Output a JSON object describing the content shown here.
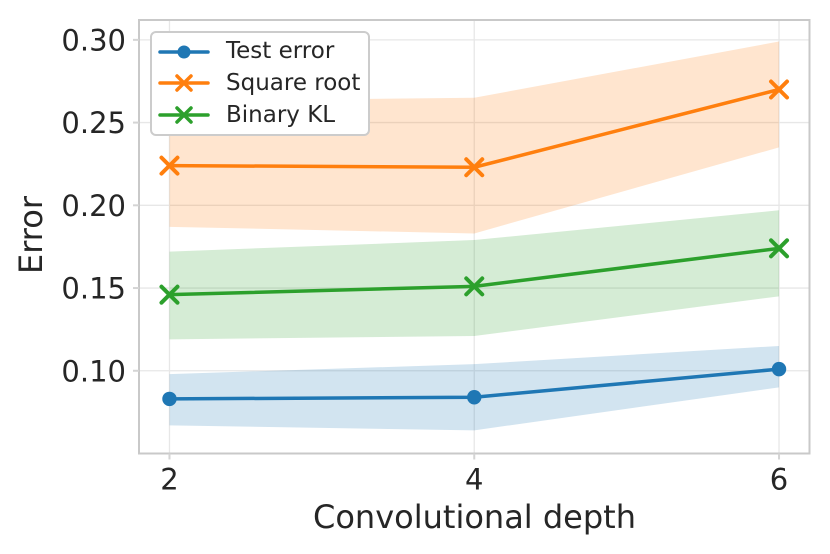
{
  "chart_data": {
    "type": "line",
    "title": "",
    "xlabel": "Convolutional depth",
    "ylabel": "Error",
    "x": [
      2,
      4,
      6
    ],
    "xlim": [
      1.8,
      6.2
    ],
    "ylim": [
      0.05,
      0.312
    ],
    "xtick_values": [
      2,
      4,
      6
    ],
    "xtick_labels": [
      "2",
      "4",
      "6"
    ],
    "ytick_values": [
      0.1,
      0.15,
      0.2,
      0.25,
      0.3
    ],
    "ytick_labels": [
      "0.10",
      "0.15",
      "0.20",
      "0.25",
      "0.30"
    ],
    "grid": true,
    "legend_position": "upper left",
    "band_opacity": 0.2,
    "series": [
      {
        "name": "Test error",
        "color": "#1f77b4",
        "marker": "circle",
        "values": [
          0.083,
          0.084,
          0.101
        ],
        "band_low": [
          0.067,
          0.064,
          0.09
        ],
        "band_high": [
          0.098,
          0.104,
          0.115
        ]
      },
      {
        "name": "Square root",
        "color": "#ff7f0e",
        "marker": "x",
        "values": [
          0.224,
          0.223,
          0.27
        ],
        "band_low": [
          0.187,
          0.183,
          0.235
        ],
        "band_high": [
          0.263,
          0.265,
          0.299
        ]
      },
      {
        "name": "Binary KL",
        "color": "#2ca02c",
        "marker": "x",
        "values": [
          0.146,
          0.151,
          0.174
        ],
        "band_low": [
          0.119,
          0.121,
          0.145
        ],
        "band_high": [
          0.172,
          0.179,
          0.197
        ]
      }
    ]
  },
  "styles": {
    "background": "#ffffff",
    "grid_color": "#e7e7e7",
    "spine_color": "#c9c9c9",
    "tick_color": "#d4d4d4",
    "text_color": "#262626"
  }
}
